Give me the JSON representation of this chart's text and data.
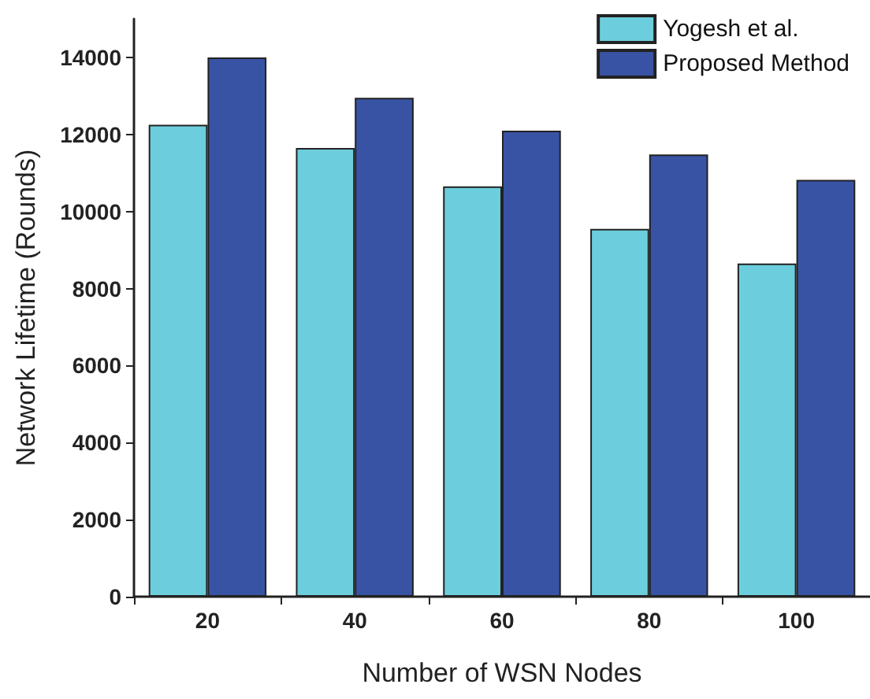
{
  "chart_data": {
    "type": "bar",
    "xlabel": "Number of WSN Nodes",
    "ylabel": "Network Lifetime (Rounds)",
    "categories": [
      "20",
      "40",
      "60",
      "80",
      "100"
    ],
    "series": [
      {
        "name": "Yogesh et al.",
        "color": "#6ccedc",
        "values": [
          12250,
          11650,
          10650,
          9550,
          8650
        ]
      },
      {
        "name": "Proposed Method",
        "color": "#3953a4",
        "values": [
          14000,
          12950,
          12100,
          11480,
          10820
        ]
      }
    ],
    "ylim": [
      0,
      15000
    ],
    "yticks": [
      0,
      2000,
      4000,
      6000,
      8000,
      10000,
      12000,
      14000
    ],
    "grid": false,
    "legend": "top right"
  }
}
